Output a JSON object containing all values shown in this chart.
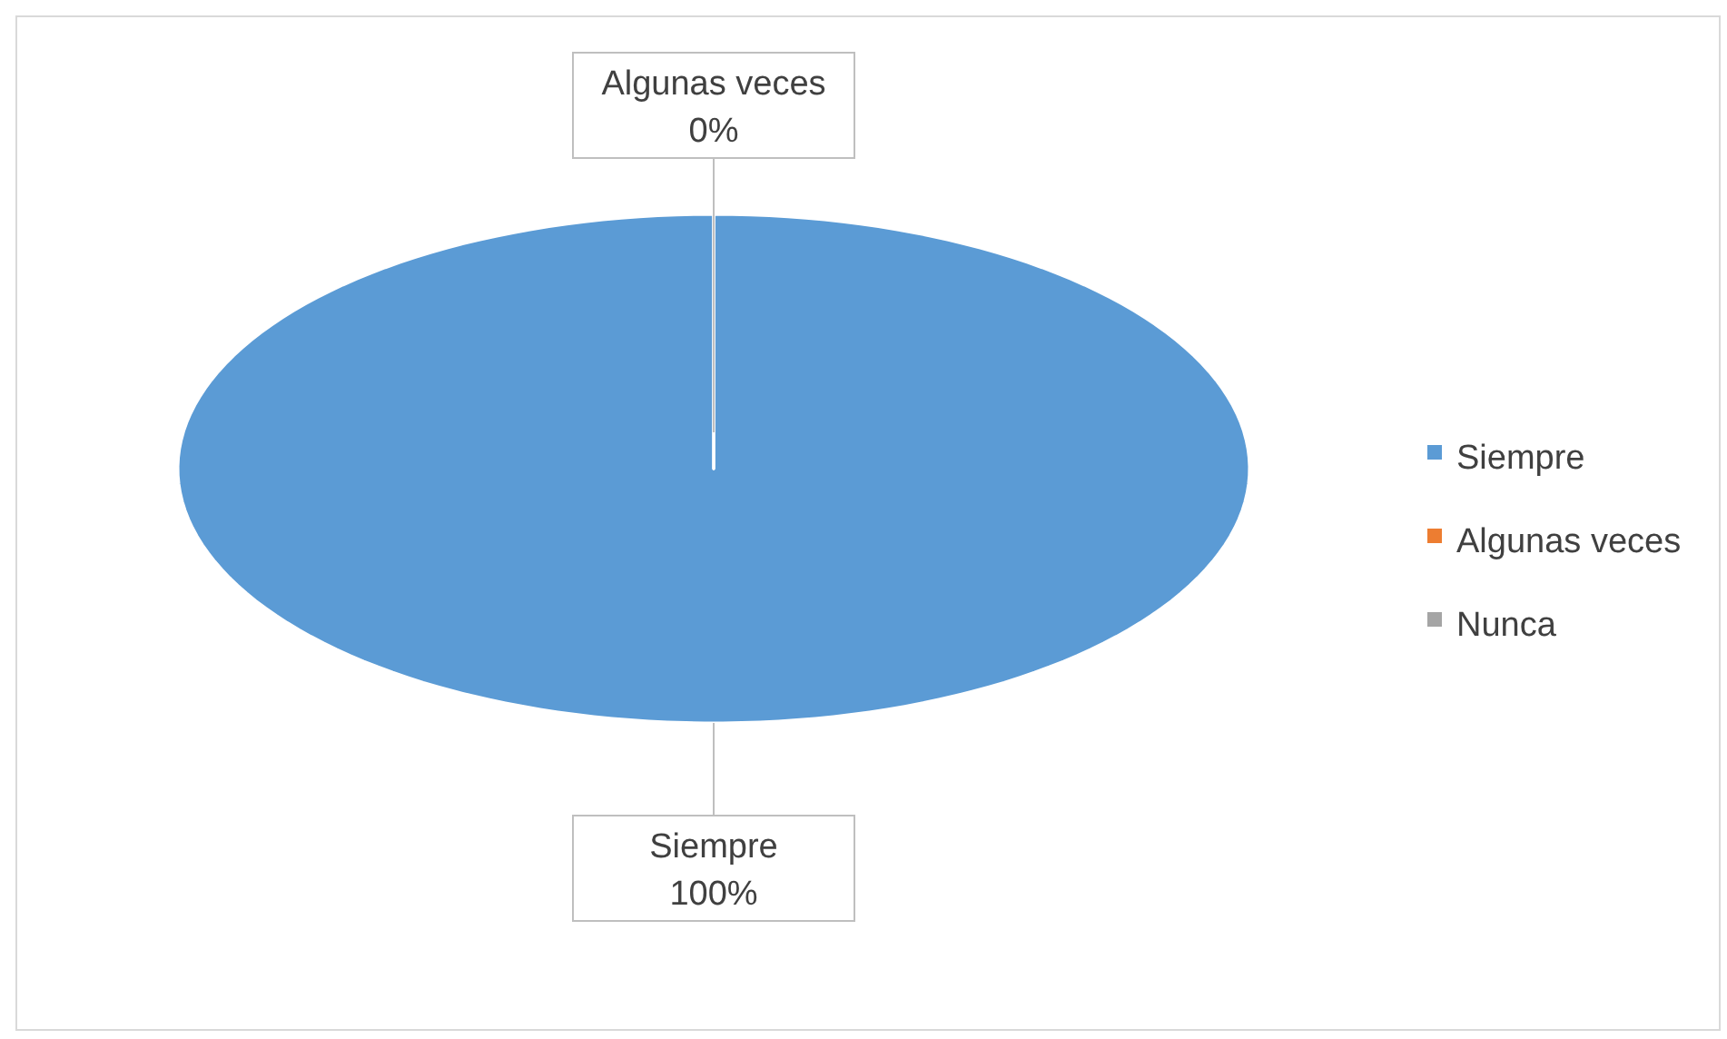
{
  "chart_data": {
    "type": "pie",
    "categories": [
      "Siempre",
      "Algunas veces",
      "Nunca"
    ],
    "values": [
      100,
      0,
      0
    ],
    "colors": [
      "#5b9bd5",
      "#ed7d31",
      "#a5a5a5"
    ],
    "value_labels": [
      "100%",
      "0%",
      null
    ],
    "legend": "right"
  }
}
